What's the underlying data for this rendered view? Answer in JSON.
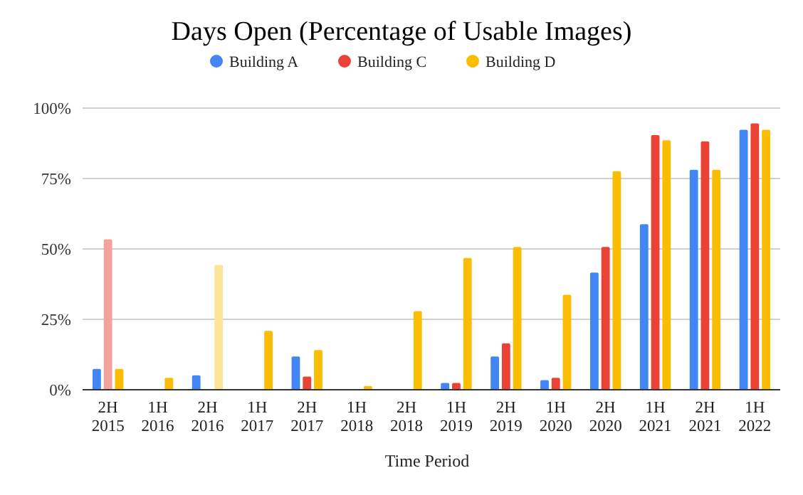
{
  "chart_data": {
    "type": "bar",
    "title": "Days Open (Percentage of Usable Images)",
    "xlabel": "Time Period",
    "categories": [
      "2H 2015",
      "1H 2016",
      "2H 2016",
      "1H 2017",
      "2H 2017",
      "1H 2018",
      "2H 2018",
      "1H 2019",
      "2H 2019",
      "1H 2020",
      "2H 2020",
      "1H 2021",
      "2H 2021",
      "1H 2022"
    ],
    "series": [
      {
        "name": "Building A",
        "color": "#4285f4",
        "values": [
          7.4,
          null,
          5.1,
          null,
          11.8,
          null,
          null,
          2.4,
          11.8,
          3.4,
          41.6,
          58.8,
          78.1,
          92.3
        ]
      },
      {
        "name": "Building C",
        "color": "#ea4335",
        "colors": [
          "#f3a29c",
          null,
          null,
          null,
          "#ea4335",
          null,
          null,
          "#ea4335",
          "#ea4335",
          "#ea4335",
          "#ea4335",
          "#ea4335",
          "#ea4335",
          "#ea4335"
        ],
        "values": [
          53.4,
          null,
          null,
          null,
          4.7,
          null,
          null,
          2.4,
          16.5,
          4.2,
          50.7,
          90.4,
          88.2,
          94.6
        ]
      },
      {
        "name": "Building D",
        "color": "#fbbc04",
        "colors": [
          "#fbbc04",
          "#fbbc04",
          "#fde49b",
          "#fbbc04",
          "#fbbc04",
          "#fbbc04",
          "#fbbc04",
          "#fbbc04",
          "#fbbc04",
          "#fbbc04",
          "#fbbc04",
          "#fbbc04",
          "#fbbc04",
          "#fbbc04"
        ],
        "values": [
          7.4,
          4.2,
          44.3,
          20.9,
          14.1,
          1.3,
          27.9,
          46.8,
          50.7,
          33.7,
          77.6,
          88.6,
          78.1,
          92.3
        ]
      }
    ],
    "ylim": [
      0,
      100
    ],
    "yticks": [
      {
        "value": 0,
        "label": "0%"
      },
      {
        "value": 25,
        "label": "25%"
      },
      {
        "value": 50,
        "label": "50%"
      },
      {
        "value": 75,
        "label": "75%"
      },
      {
        "value": 100,
        "label": "100%"
      }
    ],
    "grid": "y",
    "legend": "top"
  }
}
